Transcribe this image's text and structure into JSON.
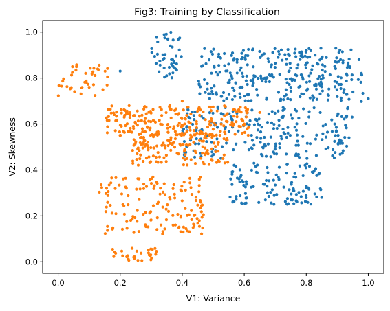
{
  "chart_data": {
    "type": "scatter",
    "title": "Fig3: Training by Classification",
    "xlabel": "V1: Variance",
    "ylabel": "V2: Skewness",
    "xlim": [
      -0.05,
      1.05
    ],
    "ylim": [
      -0.05,
      1.05
    ],
    "xticks": [
      0.0,
      0.2,
      0.4,
      0.6,
      0.8,
      1.0
    ],
    "yticks": [
      0.0,
      0.2,
      0.4,
      0.6,
      0.8,
      1.0
    ],
    "xtick_labels": [
      "0.0",
      "0.2",
      "0.4",
      "0.6",
      "0.8",
      "1.0"
    ],
    "ytick_labels": [
      "0.0",
      "0.2",
      "0.4",
      "0.6",
      "0.8",
      "1.0"
    ],
    "grid": false,
    "legend": "none",
    "series": [
      {
        "color": "#1f77b4",
        "clusters": [
          {
            "x": [
              0.3,
              0.4
            ],
            "y": [
              0.8,
              1.0
            ],
            "n": 45
          },
          {
            "x": [
              0.45,
              0.95
            ],
            "y": [
              0.7,
              0.93
            ],
            "n": 300
          },
          {
            "x": [
              0.4,
              0.95
            ],
            "y": [
              0.45,
              0.68
            ],
            "n": 230
          },
          {
            "x": [
              0.55,
              0.85
            ],
            "y": [
              0.25,
              0.43
            ],
            "n": 120
          },
          {
            "x": [
              0.9,
              1.0
            ],
            "y": [
              0.62,
              0.88
            ],
            "n": 8
          }
        ],
        "points": [
          [
            0.2,
            0.83
          ],
          [
            0.35,
            0.81
          ],
          [
            0.93,
            0.63
          ],
          [
            1.0,
            0.71
          ],
          [
            0.97,
            0.88
          ]
        ]
      },
      {
        "color": "#ff7f0e",
        "clusters": [
          {
            "x": [
              0.0,
              0.16
            ],
            "y": [
              0.72,
              0.87
            ],
            "n": 40
          },
          {
            "x": [
              0.15,
              0.62
            ],
            "y": [
              0.55,
              0.68
            ],
            "n": 220
          },
          {
            "x": [
              0.24,
              0.55
            ],
            "y": [
              0.42,
              0.56
            ],
            "n": 150
          },
          {
            "x": [
              0.13,
              0.47
            ],
            "y": [
              0.12,
              0.37
            ],
            "n": 150
          },
          {
            "x": [
              0.17,
              0.32
            ],
            "y": [
              0.0,
              0.06
            ],
            "n": 30
          }
        ],
        "points": [
          [
            0.4,
            0.7
          ],
          [
            0.6,
            0.6
          ],
          [
            0.65,
            0.65
          ]
        ]
      }
    ]
  }
}
